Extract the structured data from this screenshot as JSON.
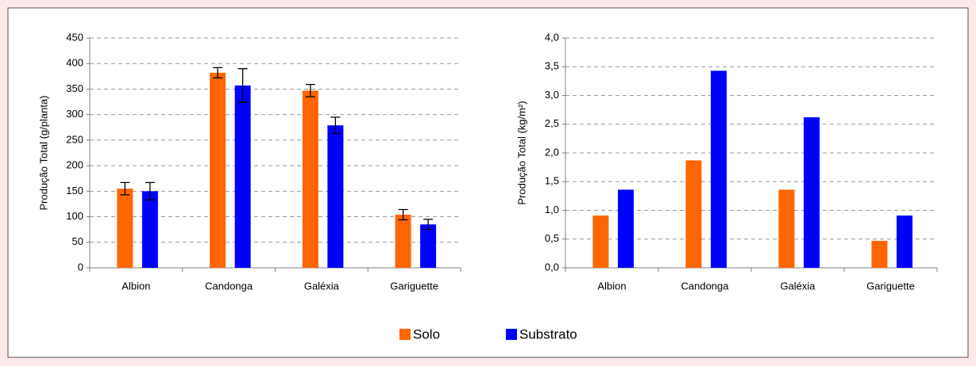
{
  "chart_data": [
    {
      "type": "bar",
      "ylabel": "Produção Total (g/planta)",
      "categories": [
        "Albion",
        "Candonga",
        "Galéxia",
        "Gariguette"
      ],
      "series": [
        {
          "name": "Solo",
          "color": "#ff6600",
          "values": [
            155,
            382,
            347,
            104
          ],
          "errors": [
            12,
            10,
            12,
            10
          ]
        },
        {
          "name": "Substrato",
          "color": "#0000ff",
          "values": [
            150,
            357,
            279,
            85
          ],
          "errors": [
            17,
            33,
            16,
            10
          ]
        }
      ],
      "ylim": [
        0,
        450
      ],
      "yticks": [
        0,
        50,
        100,
        150,
        200,
        250,
        300,
        350,
        400,
        450
      ],
      "grid": true
    },
    {
      "type": "bar",
      "ylabel": "Produção Total (kg/m²)",
      "categories": [
        "Albion",
        "Candonga",
        "Galéxia",
        "Gariguette"
      ],
      "series": [
        {
          "color": "#ff6600",
          "values": [
            0.91,
            1.87,
            1.36,
            0.47
          ]
        },
        {
          "color": "#0000ff",
          "values": [
            1.36,
            3.43,
            2.62,
            0.91
          ]
        }
      ],
      "ylim": [
        0,
        4.0
      ],
      "yticks": [
        {
          "value": 0,
          "label": "0,0"
        },
        {
          "value": 0.5,
          "label": "0,5"
        },
        {
          "value": 1.0,
          "label": "1,0"
        },
        {
          "value": 1.5,
          "label": "1,5"
        },
        {
          "value": 2.0,
          "label": "2,0"
        },
        {
          "value": 2.5,
          "label": "2,5"
        },
        {
          "value": 3.0,
          "label": "3,0"
        },
        {
          "value": 3.5,
          "label": "3,5"
        },
        {
          "value": 4.0,
          "label": "4,0"
        }
      ],
      "grid": true
    }
  ]
}
